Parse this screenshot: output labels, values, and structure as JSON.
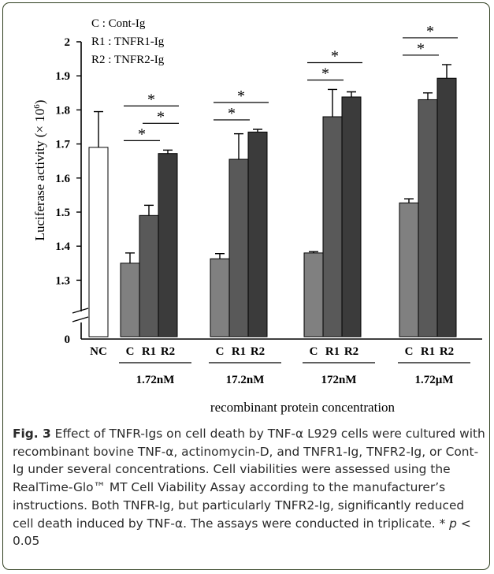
{
  "chart_data": {
    "type": "bar",
    "legend": [
      "C : Cont-Ig",
      "R1 : TNFR1-Ig",
      "R2 : TNFR2-Ig"
    ],
    "legend_position": "top-left",
    "ylabel_main": "Luciferase activity (× 10",
    "ylabel_exp": "6",
    "ylabel_close": ")",
    "xlabel": "recombinant protein concentration",
    "y_axis_break": true,
    "y_range": [
      1.25,
      2.0
    ],
    "y_ticks": [
      "2",
      "1.9",
      "1.8",
      "1.7",
      "1.6",
      "1.5",
      "1.4",
      "1.3"
    ],
    "y_ticks_values": [
      2.0,
      1.9,
      1.8,
      1.7,
      1.6,
      1.5,
      1.4,
      1.3
    ],
    "y_zero_label": "0",
    "nc": {
      "label": "NC",
      "value": 1.69,
      "err": 0.105
    },
    "groups": [
      {
        "concentration": "1.72nM",
        "bars": [
          {
            "label": "C",
            "value": 1.35,
            "err": 0.03
          },
          {
            "label": "R1",
            "value": 1.49,
            "err": 0.03
          },
          {
            "label": "R2",
            "value": 1.672,
            "err": 0.01
          }
        ],
        "significance": [
          {
            "from": "C",
            "to": "R1",
            "label": "*"
          },
          {
            "from": "C",
            "to": "R2",
            "label": "*"
          },
          {
            "from": "R1",
            "to": "R2",
            "label": "*"
          }
        ]
      },
      {
        "concentration": "17.2nM",
        "bars": [
          {
            "label": "C",
            "value": 1.363,
            "err": 0.015
          },
          {
            "label": "R1",
            "value": 1.655,
            "err": 0.075
          },
          {
            "label": "R2",
            "value": 1.735,
            "err": 0.008
          }
        ],
        "significance": [
          {
            "from": "C",
            "to": "R1",
            "label": "*"
          },
          {
            "from": "C",
            "to": "R2",
            "label": "*"
          }
        ]
      },
      {
        "concentration": "172nM",
        "bars": [
          {
            "label": "C",
            "value": 1.38,
            "err": 0.004
          },
          {
            "label": "R1",
            "value": 1.78,
            "err": 0.08
          },
          {
            "label": "R2",
            "value": 1.838,
            "err": 0.015
          }
        ],
        "significance": [
          {
            "from": "C",
            "to": "R1",
            "label": "*"
          },
          {
            "from": "C",
            "to": "R2",
            "label": "*"
          }
        ]
      },
      {
        "concentration": "1.72µM",
        "bars": [
          {
            "label": "C",
            "value": 1.527,
            "err": 0.012
          },
          {
            "label": "R1",
            "value": 1.83,
            "err": 0.02
          },
          {
            "label": "R2",
            "value": 1.893,
            "err": 0.04
          }
        ],
        "significance": [
          {
            "from": "C",
            "to": "R1",
            "label": "*"
          },
          {
            "from": "C",
            "to": "R2",
            "label": "*"
          }
        ]
      }
    ],
    "colors": {
      "NC": "#ffffff",
      "C": "#808080",
      "R1": "#595959",
      "R2": "#3b3b3b",
      "axis": "#000000"
    }
  },
  "caption": {
    "label": "Fig. 3",
    "text": " Effect of TNFR-Igs on cell death by TNF-α L929 cells were cultured with recombinant bovine TNF-α, actinomycin-D, and TNFR1-Ig, TNFR2-Ig, or Cont-Ig under several concentrations. Cell viabilities were assessed using the RealTime-Glo™ MT Cell Viability Assay according to the manufacturer’s instructions. Both TNFR-Ig, but particularly TNFR2-Ig, significantly reduced cell death induced by TNF-α. The assays were conducted in triplicate. * ",
    "p_symbol": "p",
    "p_text": " < 0.05"
  }
}
